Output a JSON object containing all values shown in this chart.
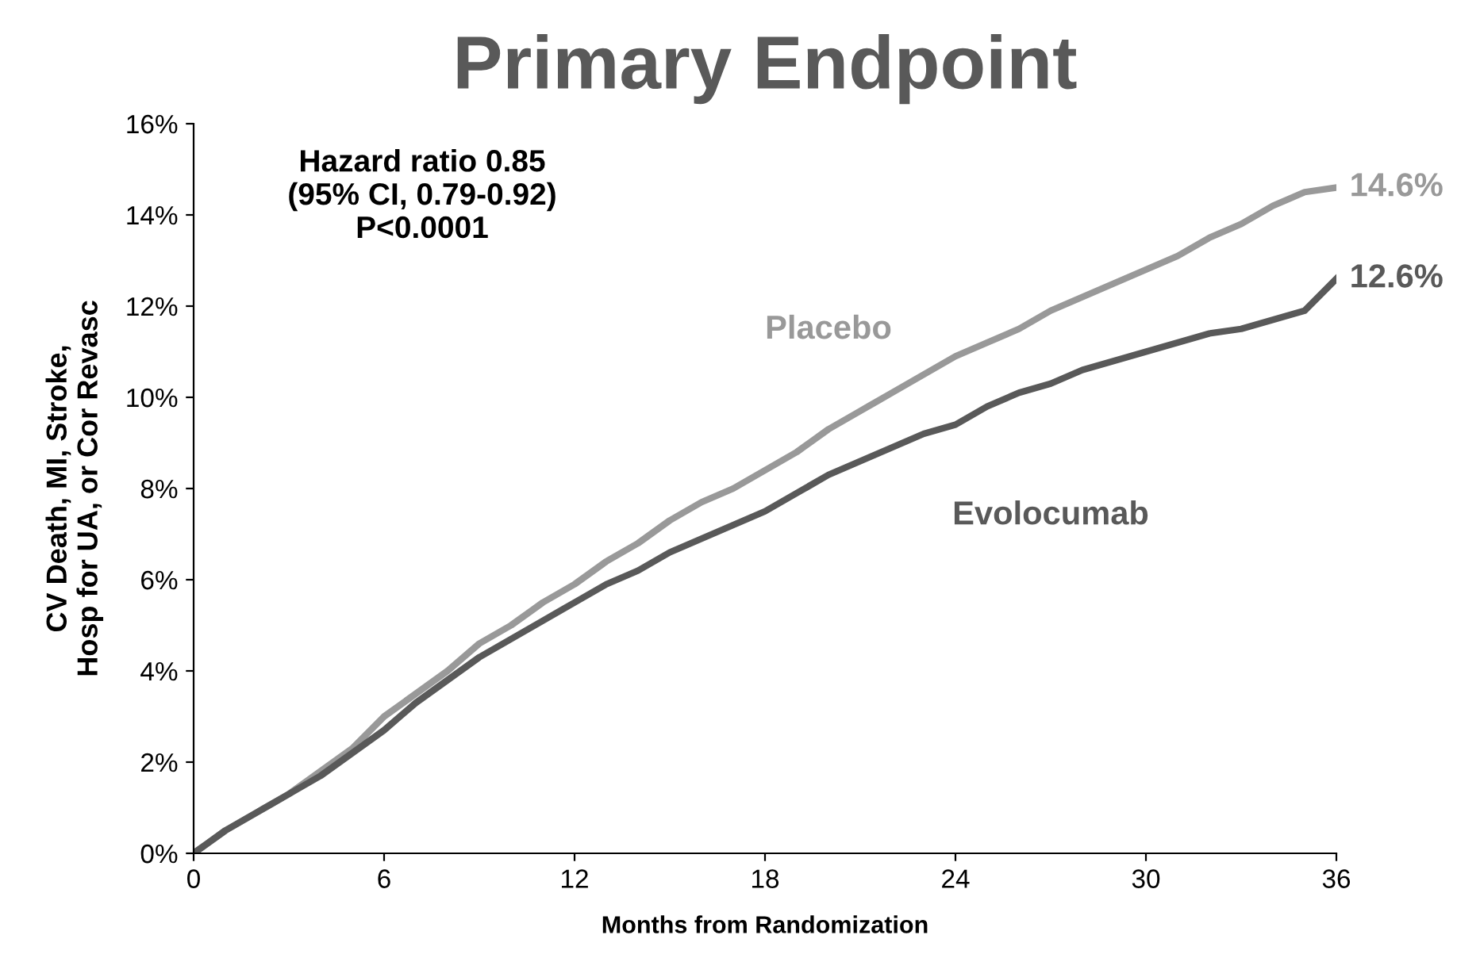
{
  "chart_data": {
    "type": "line",
    "title": "Primary Endpoint",
    "xlabel": "Months from Randomization",
    "ylabel": "CV Death, MI, Stroke,\nHosp for UA, or Cor Revasc",
    "xlim": [
      0,
      36
    ],
    "xticks": [
      0,
      6,
      12,
      18,
      24,
      30,
      36
    ],
    "ylim": [
      0,
      16
    ],
    "yticks": [
      {
        "value": 0,
        "label": "0%"
      },
      {
        "value": 2,
        "label": "2%"
      },
      {
        "value": 4,
        "label": "4%"
      },
      {
        "value": 6,
        "label": "6%"
      },
      {
        "value": 8,
        "label": "8%"
      },
      {
        "value": 10,
        "label": "10%"
      },
      {
        "value": 12,
        "label": "12%"
      },
      {
        "value": 14,
        "label": "14%"
      },
      {
        "value": 16,
        "label": "16%"
      }
    ],
    "grid": false,
    "legend": false,
    "series": [
      {
        "name": "Placebo",
        "color": "#999999",
        "x": [
          0,
          1,
          2,
          3,
          4,
          5,
          6,
          7,
          8,
          9,
          10,
          11,
          12,
          13,
          14,
          15,
          16,
          17,
          18,
          19,
          20,
          21,
          22,
          23,
          24,
          25,
          26,
          27,
          28,
          29,
          30,
          31,
          32,
          33,
          34,
          35,
          36
        ],
        "values": [
          0,
          0.5,
          0.9,
          1.3,
          1.8,
          2.3,
          3.0,
          3.5,
          4.0,
          4.6,
          5.0,
          5.5,
          5.9,
          6.4,
          6.8,
          7.3,
          7.7,
          8.0,
          8.4,
          8.8,
          9.3,
          9.7,
          10.1,
          10.5,
          10.9,
          11.2,
          11.5,
          11.9,
          12.2,
          12.5,
          12.8,
          13.1,
          13.5,
          13.8,
          14.2,
          14.5,
          14.6
        ]
      },
      {
        "name": "Evolocumab",
        "color": "#595959",
        "x": [
          0,
          1,
          2,
          3,
          4,
          5,
          6,
          7,
          8,
          9,
          10,
          11,
          12,
          13,
          14,
          15,
          16,
          17,
          18,
          19,
          20,
          21,
          22,
          23,
          24,
          25,
          26,
          27,
          28,
          29,
          30,
          31,
          32,
          33,
          34,
          35,
          36
        ],
        "values": [
          0,
          0.5,
          0.9,
          1.3,
          1.7,
          2.2,
          2.7,
          3.3,
          3.8,
          4.3,
          4.7,
          5.1,
          5.5,
          5.9,
          6.2,
          6.6,
          6.9,
          7.2,
          7.5,
          7.9,
          8.3,
          8.6,
          8.9,
          9.2,
          9.4,
          9.8,
          10.1,
          10.3,
          10.6,
          10.8,
          11.0,
          11.2,
          11.4,
          11.5,
          11.7,
          11.9,
          12.6
        ]
      }
    ],
    "annotations": [
      "Hazard ratio 0.85\n(95% CI, 0.79-0.92)\nP<0.0001",
      {
        "text": "14.6%",
        "x": 36,
        "y": 14.6
      },
      {
        "text": "12.6%",
        "x": 36,
        "y": 12.6
      }
    ]
  }
}
